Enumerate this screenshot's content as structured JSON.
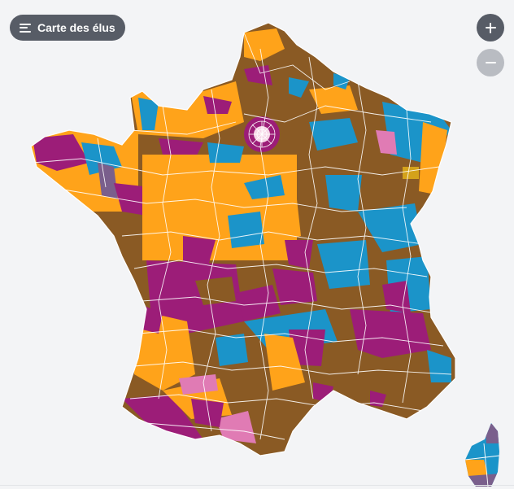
{
  "legend_button": {
    "label": "Carte des élus",
    "icon": "menu-lines-icon"
  },
  "zoom": {
    "in_icon": "plus-icon",
    "out_icon": "minus-icon"
  },
  "colors": {
    "background": "#f3f4f6",
    "brown": "#8a5a24",
    "orange": "#ffa31a",
    "blue": "#1b94c9",
    "purple": "#9c1d78",
    "pink": "#e07bb4",
    "lavender": "#7a5f8c",
    "gold": "#d4a21a",
    "border": "#ffffff",
    "button_dark": "#575c66",
    "button_disabled": "#b9bcc2"
  }
}
